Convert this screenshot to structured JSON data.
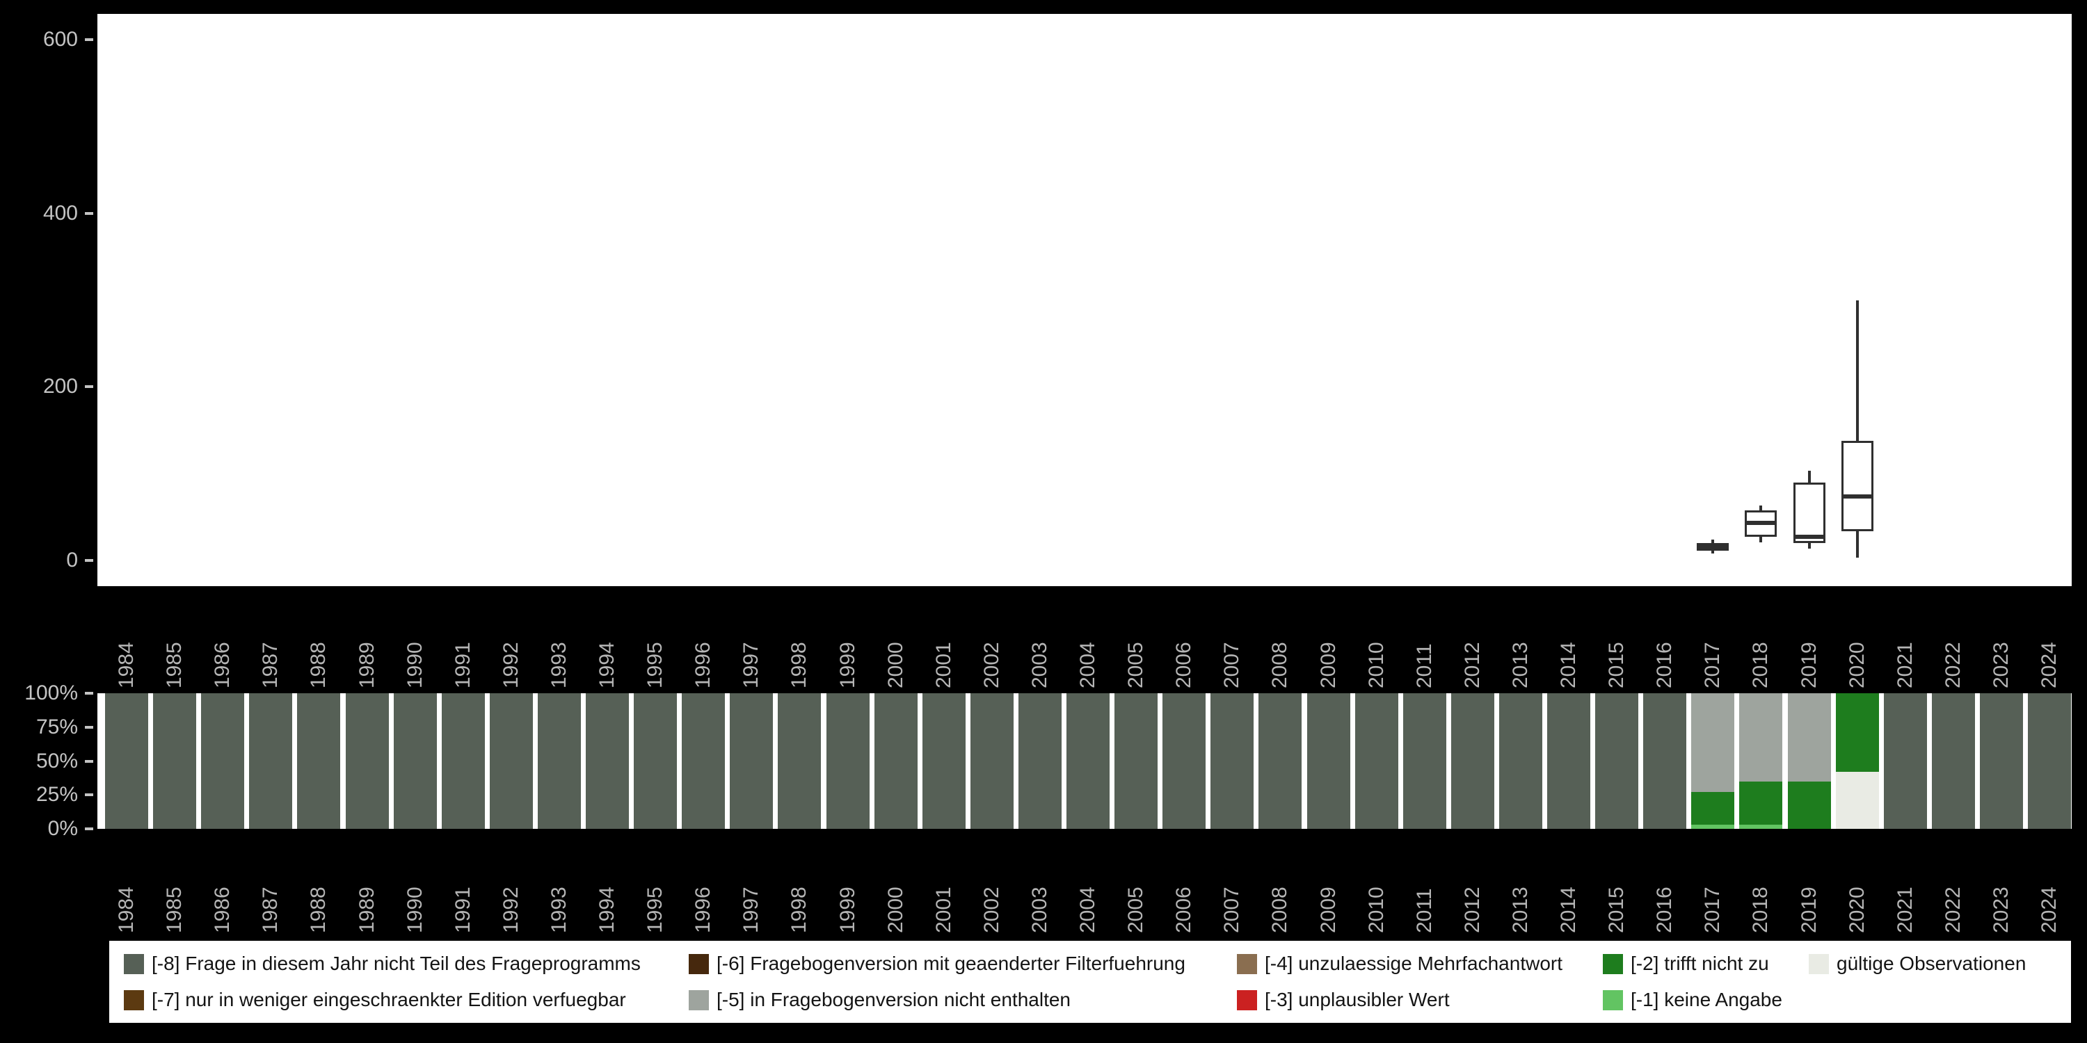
{
  "colors": {
    "background": "#000000",
    "plot_background": "#ffffff",
    "axis_text": "#c4c4c4",
    "box_outline": "#2f2f2f",
    "missing_-8": "#566056",
    "missing_-7": "#5C3A11",
    "missing_-6": "#46280D",
    "missing_-5": "#9EA49E",
    "missing_-4": "#8A6E50",
    "missing_-3": "#CB2121",
    "missing_-2": "#1E7D1E",
    "missing_-1": "#62C462",
    "valid": "#E9EBE4"
  },
  "chart_data": [
    {
      "type": "boxplot",
      "title": "",
      "xlabel": "",
      "ylabel": "",
      "ylim": [
        -30,
        630
      ],
      "yticks": [
        0,
        200,
        400,
        600
      ],
      "grid": false,
      "categories": [
        "1984",
        "1985",
        "1986",
        "1987",
        "1988",
        "1989",
        "1990",
        "1991",
        "1992",
        "1993",
        "1994",
        "1995",
        "1996",
        "1997",
        "1998",
        "1999",
        "2000",
        "2001",
        "2002",
        "2003",
        "2004",
        "2005",
        "2006",
        "2007",
        "2008",
        "2009",
        "2010",
        "2011",
        "2012",
        "2013",
        "2014",
        "2015",
        "2016",
        "2017",
        "2018",
        "2019",
        "2020",
        "2021",
        "2022",
        "2023",
        "2024"
      ],
      "boxes": [
        {
          "category": "2017",
          "whisker_low": 8,
          "q1": 11,
          "median": 15,
          "q3": 20,
          "whisker_high": 24
        },
        {
          "category": "2018",
          "whisker_low": 21,
          "q1": 27,
          "median": 43,
          "q3": 58,
          "whisker_high": 63
        },
        {
          "category": "2019",
          "whisker_low": 14,
          "q1": 20,
          "median": 27,
          "q3": 90,
          "whisker_high": 103
        },
        {
          "category": "2020",
          "whisker_low": 3,
          "q1": 34,
          "median": 74,
          "q3": 138,
          "whisker_high": 300
        }
      ]
    },
    {
      "type": "bar",
      "subtype": "stacked-100-percent",
      "title": "",
      "xlabel": "",
      "ylabel": "",
      "grid": false,
      "yticks": [
        "0%",
        "25%",
        "50%",
        "75%",
        "100%"
      ],
      "categories": [
        "1984",
        "1985",
        "1986",
        "1987",
        "1988",
        "1989",
        "1990",
        "1991",
        "1992",
        "1993",
        "1994",
        "1995",
        "1996",
        "1997",
        "1998",
        "1999",
        "2000",
        "2001",
        "2002",
        "2003",
        "2004",
        "2005",
        "2006",
        "2007",
        "2008",
        "2009",
        "2010",
        "2011",
        "2012",
        "2013",
        "2014",
        "2015",
        "2016",
        "2017",
        "2018",
        "2019",
        "2020",
        "2021",
        "2022",
        "2023",
        "2024"
      ],
      "bars": [
        {
          "category": "1984",
          "segments": [
            {
              "key": "missing_-8",
              "pct": 100
            }
          ]
        },
        {
          "category": "1985",
          "segments": [
            {
              "key": "missing_-8",
              "pct": 100
            }
          ]
        },
        {
          "category": "1986",
          "segments": [
            {
              "key": "missing_-8",
              "pct": 100
            }
          ]
        },
        {
          "category": "1987",
          "segments": [
            {
              "key": "missing_-8",
              "pct": 100
            }
          ]
        },
        {
          "category": "1988",
          "segments": [
            {
              "key": "missing_-8",
              "pct": 100
            }
          ]
        },
        {
          "category": "1989",
          "segments": [
            {
              "key": "missing_-8",
              "pct": 100
            }
          ]
        },
        {
          "category": "1990",
          "segments": [
            {
              "key": "missing_-8",
              "pct": 100
            }
          ]
        },
        {
          "category": "1991",
          "segments": [
            {
              "key": "missing_-8",
              "pct": 100
            }
          ]
        },
        {
          "category": "1992",
          "segments": [
            {
              "key": "missing_-8",
              "pct": 100
            }
          ]
        },
        {
          "category": "1993",
          "segments": [
            {
              "key": "missing_-8",
              "pct": 100
            }
          ]
        },
        {
          "category": "1994",
          "segments": [
            {
              "key": "missing_-8",
              "pct": 100
            }
          ]
        },
        {
          "category": "1995",
          "segments": [
            {
              "key": "missing_-8",
              "pct": 100
            }
          ]
        },
        {
          "category": "1996",
          "segments": [
            {
              "key": "missing_-8",
              "pct": 100
            }
          ]
        },
        {
          "category": "1997",
          "segments": [
            {
              "key": "missing_-8",
              "pct": 100
            }
          ]
        },
        {
          "category": "1998",
          "segments": [
            {
              "key": "missing_-8",
              "pct": 100
            }
          ]
        },
        {
          "category": "1999",
          "segments": [
            {
              "key": "missing_-8",
              "pct": 100
            }
          ]
        },
        {
          "category": "2000",
          "segments": [
            {
              "key": "missing_-8",
              "pct": 100
            }
          ]
        },
        {
          "category": "2001",
          "segments": [
            {
              "key": "missing_-8",
              "pct": 100
            }
          ]
        },
        {
          "category": "2002",
          "segments": [
            {
              "key": "missing_-8",
              "pct": 100
            }
          ]
        },
        {
          "category": "2003",
          "segments": [
            {
              "key": "missing_-8",
              "pct": 100
            }
          ]
        },
        {
          "category": "2004",
          "segments": [
            {
              "key": "missing_-8",
              "pct": 100
            }
          ]
        },
        {
          "category": "2005",
          "segments": [
            {
              "key": "missing_-8",
              "pct": 100
            }
          ]
        },
        {
          "category": "2006",
          "segments": [
            {
              "key": "missing_-8",
              "pct": 100
            }
          ]
        },
        {
          "category": "2007",
          "segments": [
            {
              "key": "missing_-8",
              "pct": 100
            }
          ]
        },
        {
          "category": "2008",
          "segments": [
            {
              "key": "missing_-8",
              "pct": 100
            }
          ]
        },
        {
          "category": "2009",
          "segments": [
            {
              "key": "missing_-8",
              "pct": 100
            }
          ]
        },
        {
          "category": "2010",
          "segments": [
            {
              "key": "missing_-8",
              "pct": 100
            }
          ]
        },
        {
          "category": "2011",
          "segments": [
            {
              "key": "missing_-8",
              "pct": 100
            }
          ]
        },
        {
          "category": "2012",
          "segments": [
            {
              "key": "missing_-8",
              "pct": 100
            }
          ]
        },
        {
          "category": "2013",
          "segments": [
            {
              "key": "missing_-8",
              "pct": 100
            }
          ]
        },
        {
          "category": "2014",
          "segments": [
            {
              "key": "missing_-8",
              "pct": 100
            }
          ]
        },
        {
          "category": "2015",
          "segments": [
            {
              "key": "missing_-8",
              "pct": 100
            }
          ]
        },
        {
          "category": "2016",
          "segments": [
            {
              "key": "missing_-8",
              "pct": 100
            }
          ]
        },
        {
          "category": "2017",
          "segments": [
            {
              "key": "missing_-1",
              "pct": 3
            },
            {
              "key": "missing_-2",
              "pct": 24
            },
            {
              "key": "missing_-5",
              "pct": 73
            }
          ]
        },
        {
          "category": "2018",
          "segments": [
            {
              "key": "missing_-1",
              "pct": 3
            },
            {
              "key": "missing_-2",
              "pct": 32
            },
            {
              "key": "missing_-5",
              "pct": 65
            }
          ]
        },
        {
          "category": "2019",
          "segments": [
            {
              "key": "missing_-2",
              "pct": 35
            },
            {
              "key": "missing_-5",
              "pct": 65
            }
          ]
        },
        {
          "category": "2020",
          "segments": [
            {
              "key": "valid",
              "pct": 42
            },
            {
              "key": "missing_-2",
              "pct": 58
            }
          ]
        },
        {
          "category": "2021",
          "segments": [
            {
              "key": "missing_-8",
              "pct": 100
            }
          ]
        },
        {
          "category": "2022",
          "segments": [
            {
              "key": "missing_-8",
              "pct": 100
            }
          ]
        },
        {
          "category": "2023",
          "segments": [
            {
              "key": "missing_-8",
              "pct": 100
            }
          ]
        },
        {
          "category": "2024",
          "segments": [
            {
              "key": "missing_-8",
              "pct": 100
            }
          ]
        }
      ]
    }
  ],
  "legend": {
    "rows": [
      [
        {
          "key": "missing_-8",
          "label": "[-8] Frage in diesem Jahr nicht Teil des Frageprogramms"
        },
        {
          "key": "missing_-6",
          "label": "[-6] Fragebogenversion mit geaenderter Filterfuehrung"
        },
        {
          "key": "missing_-4",
          "label": "[-4] unzulaessige Mehrfachantwort"
        },
        {
          "key": "missing_-2",
          "label": "[-2] trifft nicht zu"
        },
        {
          "key": "valid",
          "label": "gültige Observationen"
        }
      ],
      [
        {
          "key": "missing_-7",
          "label": "[-7] nur in weniger eingeschraenkter Edition verfuegbar"
        },
        {
          "key": "missing_-5",
          "label": "[-5] in Fragebogenversion nicht enthalten"
        },
        {
          "key": "missing_-3",
          "label": "[-3] unplausibler Wert"
        },
        {
          "key": "missing_-1",
          "label": "[-1] keine Angabe"
        }
      ]
    ]
  }
}
